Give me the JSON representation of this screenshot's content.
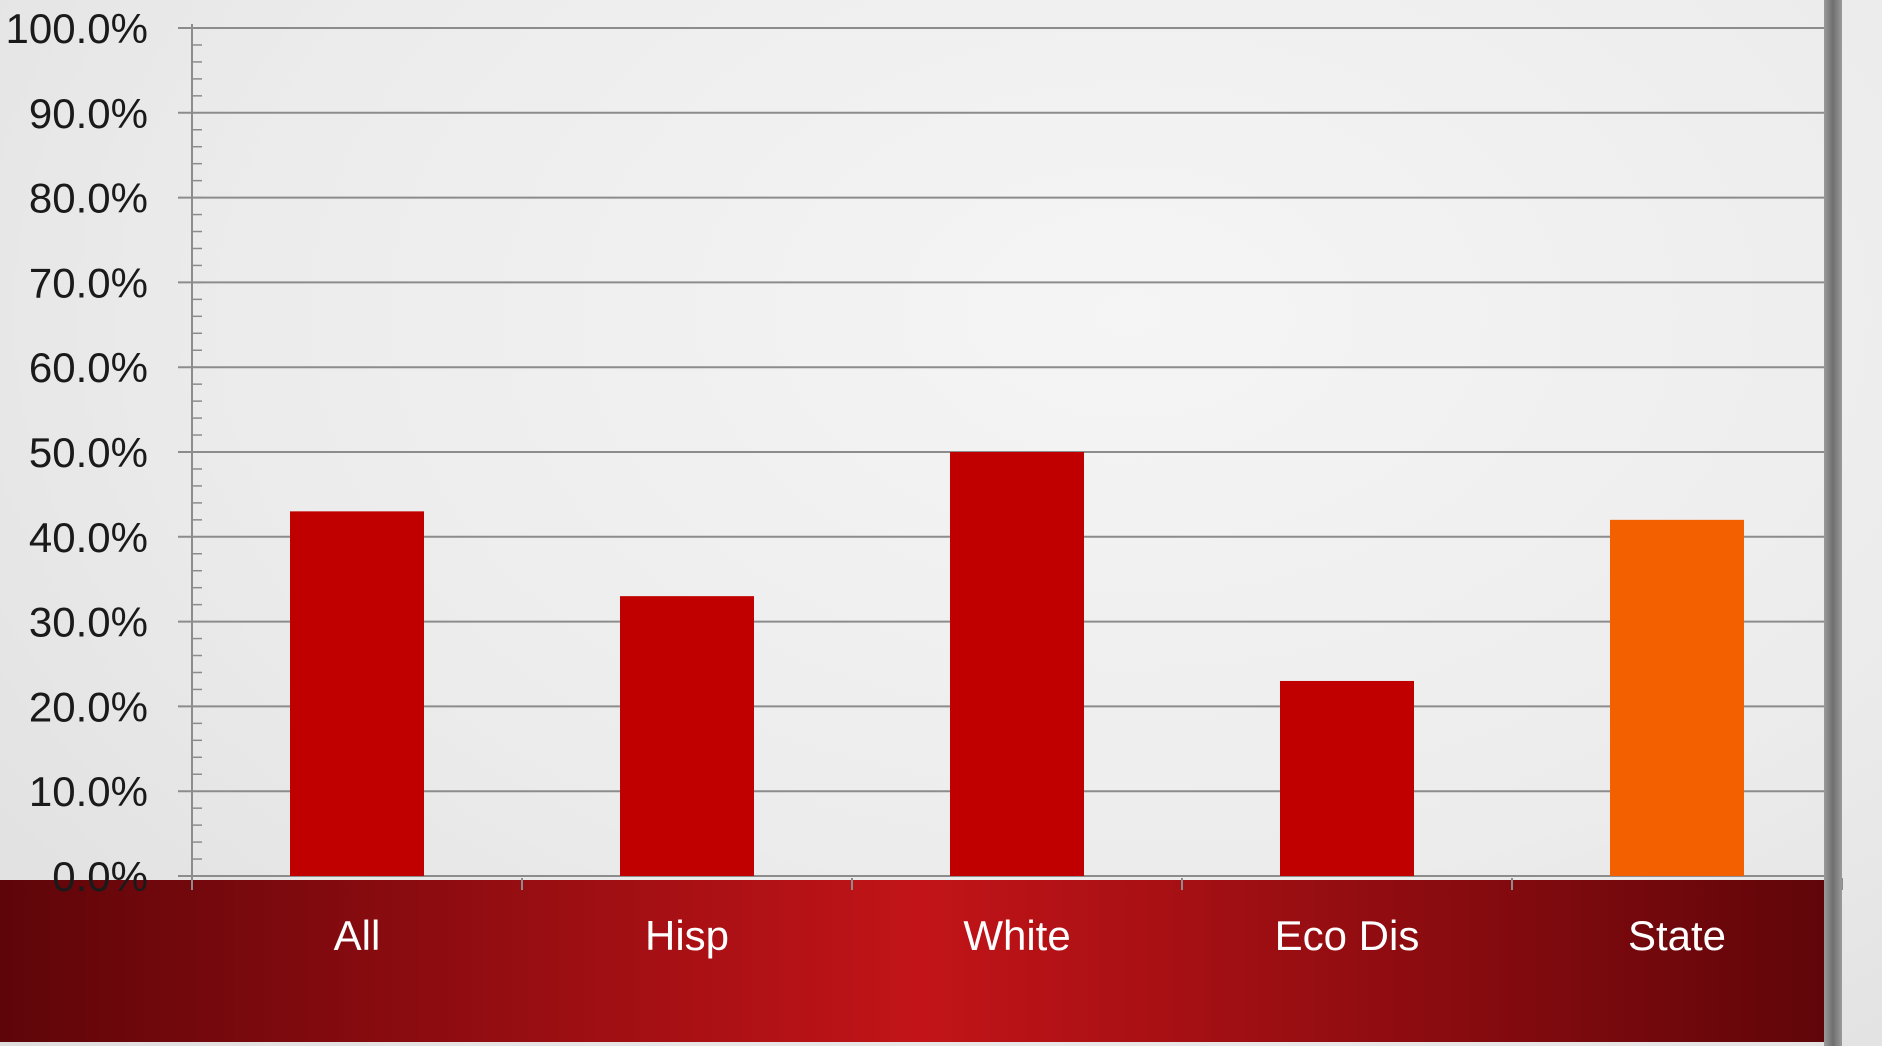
{
  "chart_data": {
    "type": "bar",
    "categories": [
      "All",
      "Hisp",
      "White",
      "Eco Dis",
      "State"
    ],
    "values": [
      43.0,
      33.0,
      50.0,
      23.0,
      42.0
    ],
    "bar_colors": [
      "#c00000",
      "#c00000",
      "#c00000",
      "#c00000",
      "#f26000"
    ],
    "yticks": [
      "0.0%",
      "10.0%",
      "20.0%",
      "30.0%",
      "40.0%",
      "50.0%",
      "60.0%",
      "70.0%",
      "80.0%",
      "90.0%",
      "100.0%"
    ],
    "ylim": [
      0,
      100
    ],
    "grid": true,
    "colors": {
      "bar_primary": "#c00000",
      "bar_highlight": "#f26000",
      "band_dark": "#5e0509",
      "band_light": "#c21418",
      "gridline": "#8c8c8c",
      "tick_label": "#1a1a1a",
      "category_label": "#ffffff"
    }
  }
}
